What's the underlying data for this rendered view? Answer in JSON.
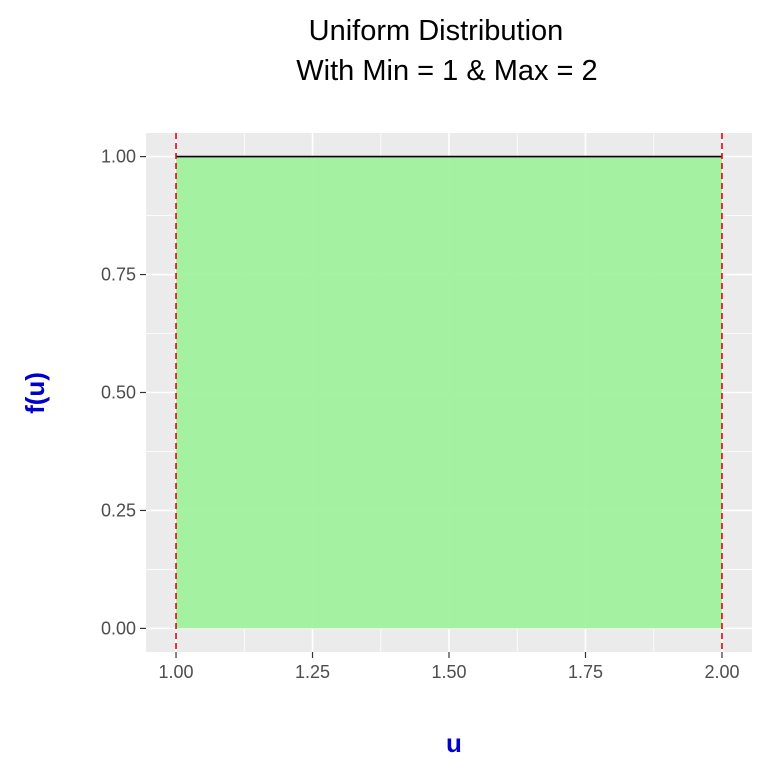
{
  "chart_data": {
    "type": "area",
    "title_lines": [
      "Uniform Distribution",
      "With Min = 1 & Max = 2"
    ],
    "xlabel": "u",
    "ylabel": "f(u)",
    "xlim": [
      0.945,
      2.055
    ],
    "ylim": [
      -0.05,
      1.05
    ],
    "x_ticks": [
      1.0,
      1.25,
      1.5,
      1.75,
      2.0
    ],
    "x_tick_labels": [
      "1.00",
      "1.25",
      "1.50",
      "1.75",
      "2.00"
    ],
    "y_ticks": [
      0.0,
      0.25,
      0.5,
      0.75,
      1.0
    ],
    "y_tick_labels": [
      "0.00",
      "0.25",
      "0.50",
      "0.75",
      "1.00"
    ],
    "grid": true,
    "legend": "none",
    "series": [
      {
        "x": [
          1.0,
          2.0
        ],
        "y": [
          1.0,
          1.0
        ]
      }
    ],
    "vlines": [
      1.0,
      2.0
    ],
    "colors": {
      "panel_bg": "#ebebeb",
      "grid": "#ffffff",
      "fill": "#9df29a",
      "density_line": "#000000",
      "vline": "#e8000b",
      "axis_title": "#0000cc",
      "tick_label": "#4d4d4d"
    }
  }
}
